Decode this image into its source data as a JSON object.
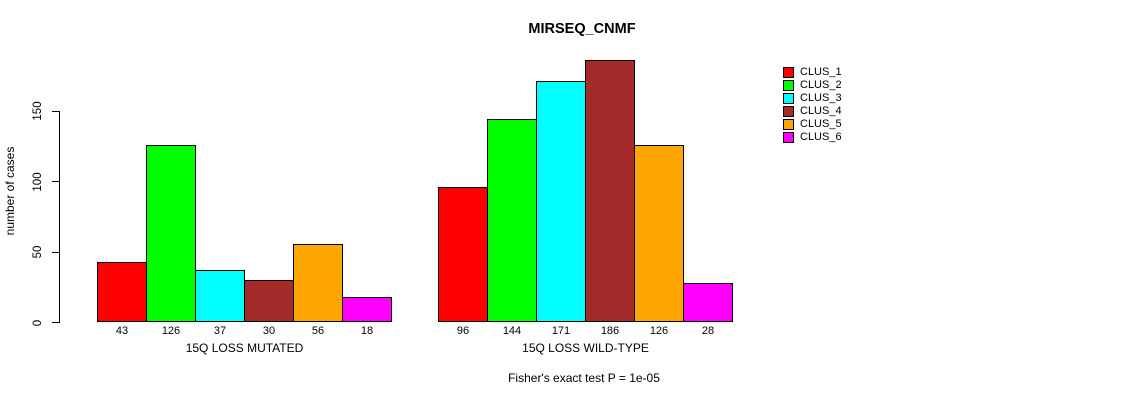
{
  "title": "MIRSEQ_CNMF",
  "y_axis": {
    "label": "number of cases",
    "ticks": [
      0,
      50,
      100,
      150
    ]
  },
  "footer": "Fisher's exact test P = 1e-05",
  "chart_data": {
    "type": "bar",
    "title": "MIRSEQ_CNMF",
    "ylabel": "number of cases",
    "xlabel": "",
    "ylim": [
      0,
      190
    ],
    "yticks": [
      0,
      50,
      100,
      150
    ],
    "grid": false,
    "legend_position": "right",
    "categories": [
      "15Q LOSS MUTATED",
      "15Q LOSS WILD-TYPE"
    ],
    "series": [
      {
        "name": "CLUS_1",
        "color": "#FF0000",
        "values": [
          43,
          96
        ]
      },
      {
        "name": "CLUS_2",
        "color": "#00FF00",
        "values": [
          126,
          144
        ]
      },
      {
        "name": "CLUS_3",
        "color": "#00FFFF",
        "values": [
          37,
          171
        ]
      },
      {
        "name": "CLUS_4",
        "color": "#A52A2A",
        "values": [
          30,
          186
        ]
      },
      {
        "name": "CLUS_5",
        "color": "#FFA500",
        "values": [
          56,
          126
        ]
      },
      {
        "name": "CLUS_6",
        "color": "#FF00FF",
        "values": [
          18,
          28
        ]
      }
    ],
    "bar_value_labels": [
      [
        43,
        126,
        37,
        30,
        56,
        18
      ],
      [
        96,
        144,
        171,
        186,
        126,
        28
      ]
    ],
    "annotation": "Fisher's exact test P = 1e-05",
    "bar_border_color": "#000000",
    "background_color": "#FFFFFF"
  }
}
